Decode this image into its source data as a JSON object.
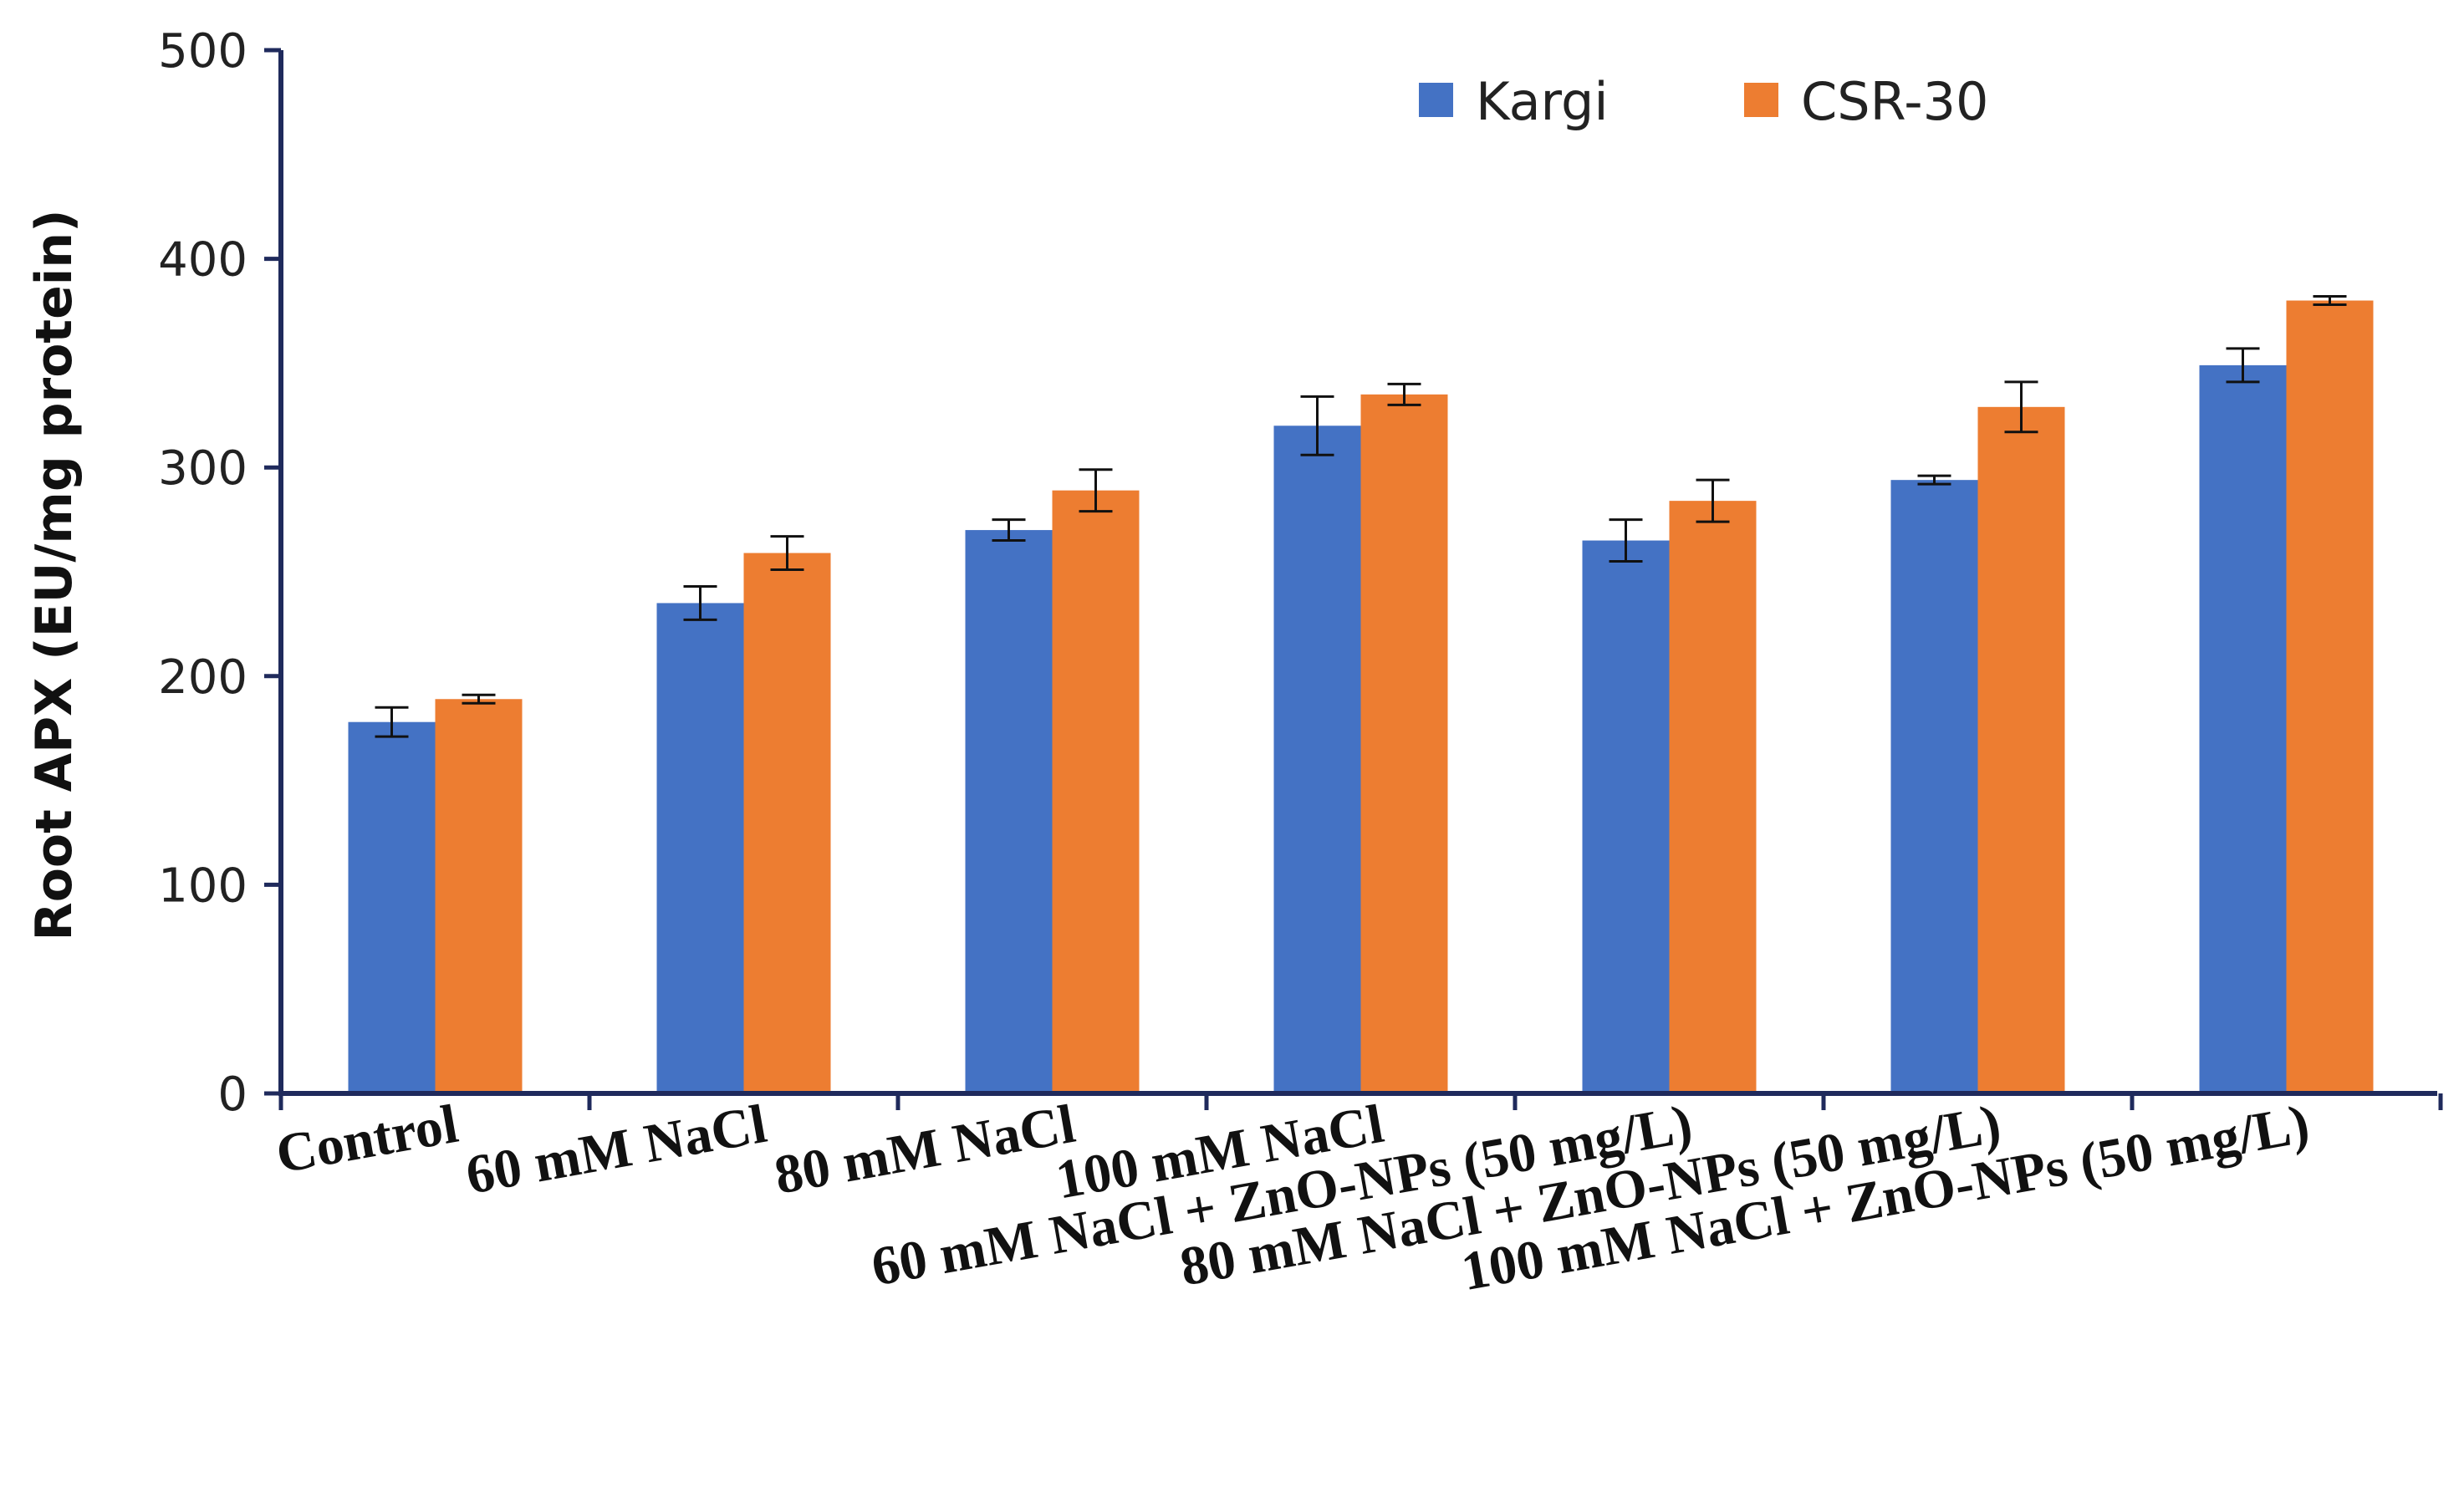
{
  "chart_data": {
    "type": "bar",
    "title": "",
    "xlabel": "",
    "ylabel": "Root APX (EU/mg protein)",
    "ylim": [
      0,
      500
    ],
    "yticks": [
      0,
      100,
      200,
      300,
      400,
      500
    ],
    "categories": [
      "Control",
      "60 mM NaCl",
      "80 mM NaCl",
      "100 mM NaCl",
      "60 mM NaCl + ZnO-NPs (50 mg/L)",
      "80 mM NaCl + ZnO-NPs (50 mg/L)",
      "100 mM NaCl + ZnO-NPs (50 mg/L)"
    ],
    "series": [
      {
        "name": "Kargi",
        "color": "#4472C4",
        "values": [
          178,
          235,
          270,
          320,
          265,
          294,
          349
        ],
        "errors": [
          7,
          8,
          5,
          14,
          10,
          2,
          8
        ]
      },
      {
        "name": "CSR-30",
        "color": "#ED7D31",
        "values": [
          189,
          259,
          289,
          335,
          284,
          329,
          380
        ],
        "errors": [
          2,
          8,
          10,
          5,
          10,
          12,
          2
        ]
      }
    ],
    "legend_position": "top-right",
    "grid": false,
    "axis_color": "#1F2A5C"
  }
}
